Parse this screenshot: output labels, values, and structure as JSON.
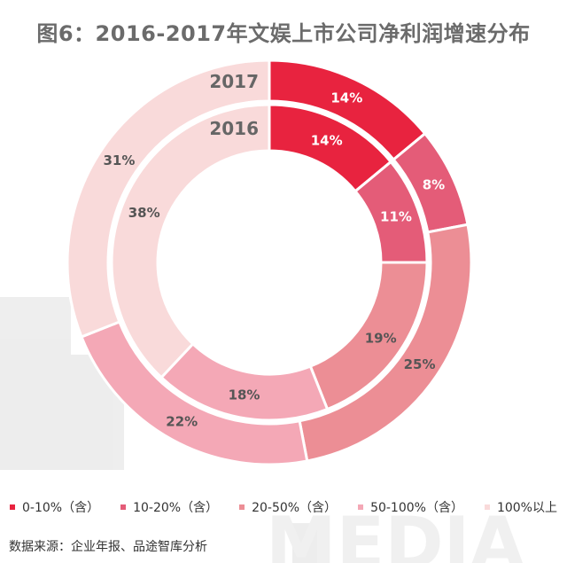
{
  "title": "图6：2016-2017年文娱上市公司净利润增速分布",
  "source": "数据来源：企业年报、品途智库分析",
  "chart_data": {
    "type": "pie",
    "variant": "nested-donut",
    "categories": [
      "0-10%（含）",
      "10-20%（含）",
      "20-50%（含）",
      "50-100%（含）",
      "100%以上"
    ],
    "colors": [
      "#e8233f",
      "#e45c78",
      "#ec8e95",
      "#f4a8b6",
      "#f9dada"
    ],
    "series": [
      {
        "name": "2017",
        "values": [
          14,
          8,
          25,
          22,
          31
        ]
      },
      {
        "name": "2016",
        "values": [
          14,
          11,
          19,
          18,
          38
        ]
      }
    ],
    "legend_position": "bottom"
  },
  "labels": [
    "14%",
    "8%",
    "25%",
    "22%",
    "31%",
    "14%",
    "11%",
    "19%",
    "18%",
    "38%"
  ],
  "watermark": "MEDIA"
}
